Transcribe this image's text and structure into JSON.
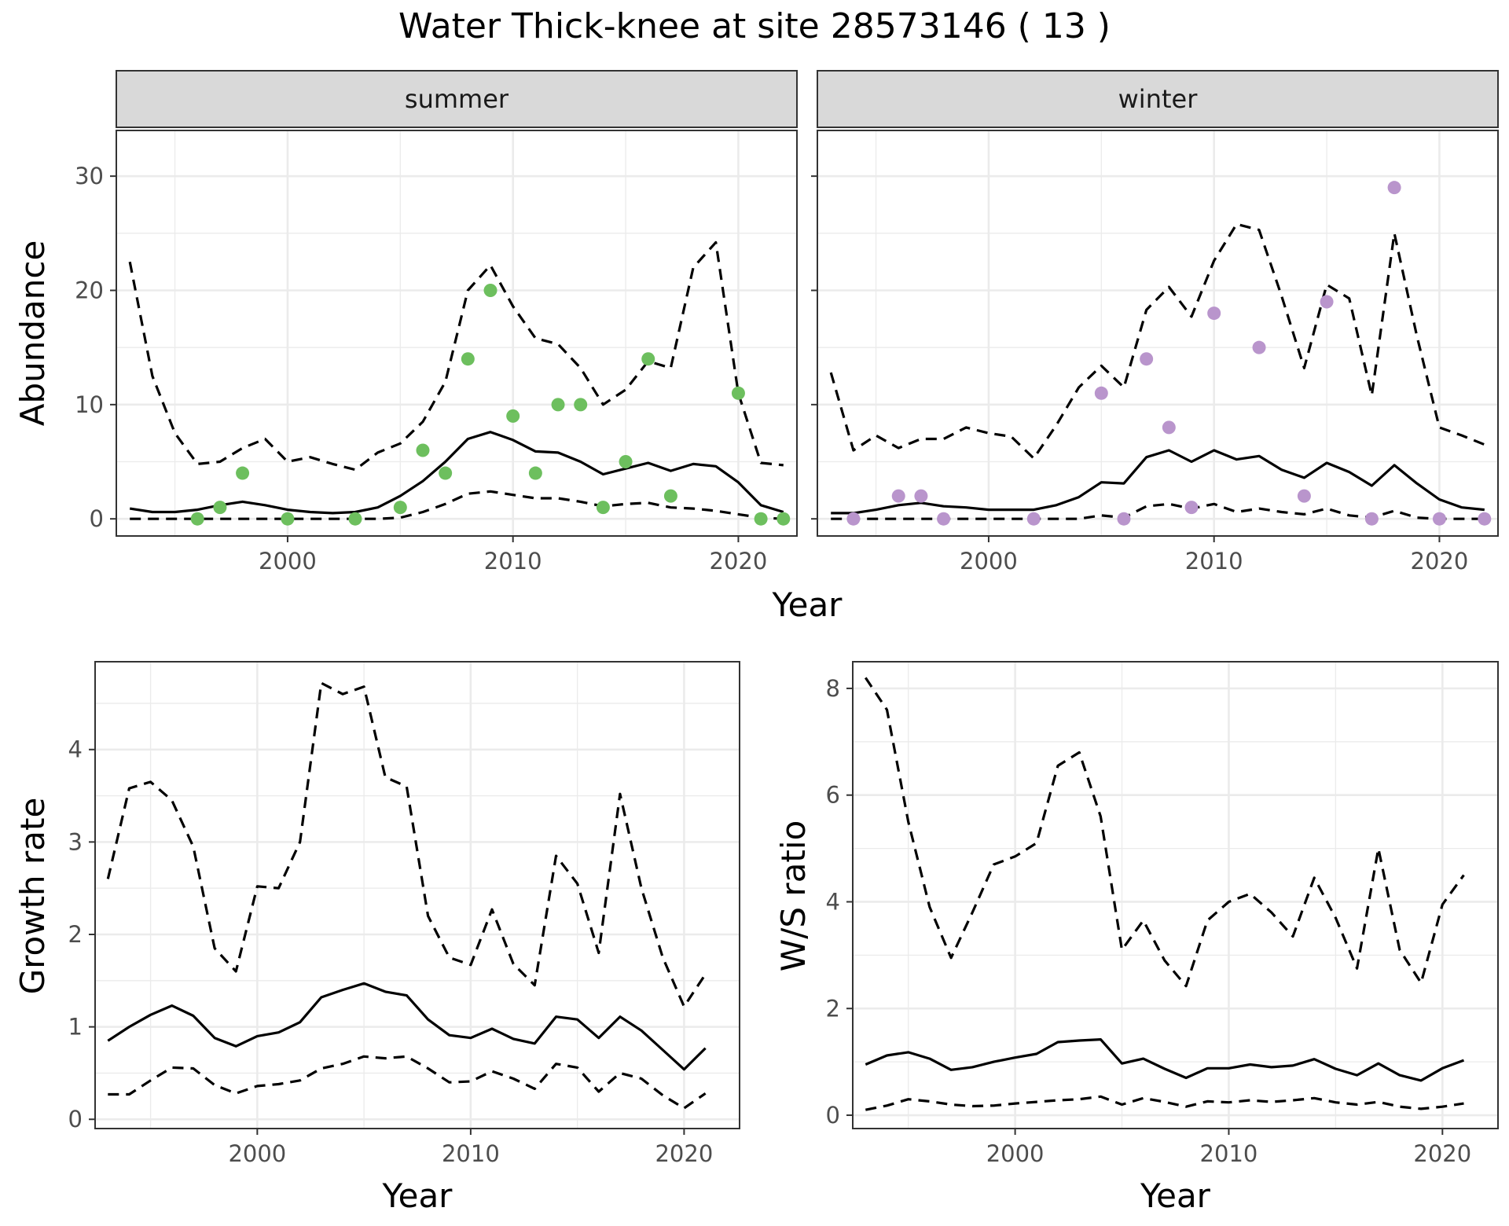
{
  "title": "Water Thick-knee at site 28573146 ( 13 )",
  "colors": {
    "summer_points": "#6dbf5e",
    "winter_points": "#b995cc"
  },
  "chart_data": [
    {
      "id": "abundance-summer",
      "type": "line",
      "facet": "summer",
      "xlabel": "Year",
      "ylabel": "Abundance",
      "xlim": [
        1992.4,
        2022.6
      ],
      "ylim": [
        -1.5,
        34
      ],
      "xticks": [
        2000,
        2010,
        2020
      ],
      "yticks": [
        0,
        10,
        20,
        30
      ],
      "tick_labels_x": [
        "2000",
        "2010",
        "2020"
      ],
      "tick_labels_y": [
        "0",
        "10",
        "20",
        "30"
      ],
      "mean": {
        "x": [
          1993,
          1994,
          1995,
          1996,
          1997,
          1998,
          1999,
          2000,
          2001,
          2002,
          2003,
          2004,
          2005,
          2006,
          2007,
          2008,
          2009,
          2010,
          2011,
          2012,
          2013,
          2014,
          2015,
          2016,
          2017,
          2018,
          2019,
          2020,
          2021,
          2022
        ],
        "y": [
          0.9,
          0.6,
          0.6,
          0.8,
          1.2,
          1.5,
          1.2,
          0.8,
          0.6,
          0.5,
          0.6,
          1.0,
          2.0,
          3.3,
          5.0,
          7.0,
          7.6,
          6.9,
          5.9,
          5.8,
          5.0,
          3.9,
          4.4,
          4.9,
          4.2,
          4.8,
          4.6,
          3.2,
          1.2,
          0.6
        ]
      },
      "upper": {
        "x": [
          1993,
          1994,
          1995,
          1996,
          1997,
          1998,
          1999,
          2000,
          2001,
          2002,
          2003,
          2004,
          2005,
          2006,
          2007,
          2008,
          2009,
          2010,
          2011,
          2012,
          2013,
          2014,
          2015,
          2016,
          2017,
          2018,
          2019,
          2020,
          2021,
          2022
        ],
        "y": [
          22.5,
          12.5,
          7.5,
          4.8,
          5.0,
          6.2,
          7.0,
          5.0,
          5.4,
          4.8,
          4.3,
          5.8,
          6.6,
          8.5,
          12.0,
          20.0,
          22.2,
          18.6,
          15.8,
          15.3,
          13.2,
          10.0,
          11.3,
          13.8,
          13.2,
          22.0,
          24.2,
          11.0,
          4.9,
          4.7
        ]
      },
      "lower": {
        "x": [
          1993,
          1994,
          1995,
          1996,
          1997,
          1998,
          1999,
          2000,
          2001,
          2002,
          2003,
          2004,
          2005,
          2006,
          2007,
          2008,
          2009,
          2010,
          2011,
          2012,
          2013,
          2014,
          2015,
          2016,
          2017,
          2018,
          2019,
          2020,
          2021,
          2022
        ],
        "y": [
          0,
          0,
          0,
          0,
          0,
          0,
          0,
          0,
          0,
          0,
          0,
          0,
          0.1,
          0.6,
          1.3,
          2.2,
          2.4,
          2.1,
          1.8,
          1.8,
          1.5,
          1.1,
          1.3,
          1.4,
          1.0,
          0.9,
          0.7,
          0.4,
          0.1,
          0.0
        ]
      },
      "points": {
        "x": [
          1996,
          1997,
          1998,
          2000,
          2003,
          2005,
          2006,
          2007,
          2008,
          2009,
          2010,
          2011,
          2012,
          2013,
          2014,
          2015,
          2016,
          2017,
          2020,
          2021,
          2022
        ],
        "y": [
          0,
          1,
          4,
          0,
          0,
          1,
          6,
          4,
          14,
          20,
          9,
          4,
          10,
          10,
          1,
          5,
          14,
          2,
          11,
          0,
          0
        ]
      }
    },
    {
      "id": "abundance-winter",
      "type": "line",
      "facet": "winter",
      "xlabel": "Year",
      "ylabel": "Abundance",
      "xlim": [
        1992.4,
        2022.6
      ],
      "ylim": [
        -1.5,
        34
      ],
      "xticks": [
        2000,
        2010,
        2020
      ],
      "yticks": [
        0,
        10,
        20,
        30
      ],
      "tick_labels_x": [
        "2000",
        "2010",
        "2020"
      ],
      "tick_labels_y": [
        "0",
        "10",
        "20",
        "30"
      ],
      "mean": {
        "x": [
          1993,
          1994,
          1995,
          1996,
          1997,
          1998,
          1999,
          2000,
          2001,
          2002,
          2003,
          2004,
          2005,
          2006,
          2007,
          2008,
          2009,
          2010,
          2011,
          2012,
          2013,
          2014,
          2015,
          2016,
          2017,
          2018,
          2019,
          2020,
          2021,
          2022
        ],
        "y": [
          0.5,
          0.5,
          0.8,
          1.2,
          1.4,
          1.1,
          1.0,
          0.8,
          0.8,
          0.8,
          1.2,
          1.9,
          3.2,
          3.1,
          5.4,
          6.0,
          5.0,
          6.0,
          5.2,
          5.5,
          4.3,
          3.6,
          4.9,
          4.1,
          2.9,
          4.7,
          3.1,
          1.7,
          1.0,
          0.8
        ]
      },
      "upper": {
        "x": [
          1993,
          1994,
          1995,
          1996,
          1997,
          1998,
          1999,
          2000,
          2001,
          2002,
          2003,
          2004,
          2005,
          2006,
          2007,
          2008,
          2009,
          2010,
          2011,
          2012,
          2013,
          2014,
          2015,
          2016,
          2017,
          2018,
          2019,
          2020,
          2021,
          2022
        ],
        "y": [
          12.8,
          6.0,
          7.3,
          6.2,
          7.0,
          7.0,
          8.0,
          7.5,
          7.2,
          5.3,
          8.2,
          11.5,
          13.4,
          11.5,
          18.3,
          20.3,
          17.7,
          22.6,
          25.8,
          25.3,
          19.5,
          13.2,
          20.5,
          19.3,
          10.8,
          25.0,
          16.0,
          8.0,
          7.3,
          6.5
        ]
      },
      "lower": {
        "x": [
          1993,
          1994,
          1995,
          1996,
          1997,
          1998,
          1999,
          2000,
          2001,
          2002,
          2003,
          2004,
          2005,
          2006,
          2007,
          2008,
          2009,
          2010,
          2011,
          2012,
          2013,
          2014,
          2015,
          2016,
          2017,
          2018,
          2019,
          2020,
          2021,
          2022
        ],
        "y": [
          0,
          0,
          0,
          0,
          0,
          0,
          0,
          0,
          0,
          0,
          0,
          0,
          0.3,
          0.1,
          1.1,
          1.3,
          0.9,
          1.3,
          0.6,
          0.9,
          0.6,
          0.4,
          0.9,
          0.3,
          0.1,
          0.7,
          0.1,
          0,
          0,
          0
        ]
      },
      "points": {
        "x": [
          1994,
          1996,
          1997,
          1998,
          2002,
          2005,
          2006,
          2007,
          2008,
          2009,
          2010,
          2012,
          2014,
          2015,
          2017,
          2018,
          2020,
          2022
        ],
        "y": [
          0,
          2,
          2,
          0,
          0,
          11,
          0,
          14,
          8,
          1,
          18,
          15,
          2,
          19,
          0,
          29,
          0,
          0
        ]
      }
    },
    {
      "id": "growth-rate",
      "type": "line",
      "xlabel": "Year",
      "ylabel": "Growth rate",
      "xlim": [
        1992.4,
        2022.6
      ],
      "ylim": [
        -0.1,
        4.95
      ],
      "xticks": [
        2000,
        2010,
        2020
      ],
      "yticks": [
        0,
        1,
        2,
        3,
        4
      ],
      "tick_labels_x": [
        "2000",
        "2010",
        "2020"
      ],
      "tick_labels_y": [
        "0",
        "1",
        "2",
        "3",
        "4"
      ],
      "mean": {
        "x": [
          1993,
          1994,
          1995,
          1996,
          1997,
          1998,
          1999,
          2000,
          2001,
          2002,
          2003,
          2004,
          2005,
          2006,
          2007,
          2008,
          2009,
          2010,
          2011,
          2012,
          2013,
          2014,
          2015,
          2016,
          2017,
          2018,
          2019,
          2020,
          2021
        ],
        "y": [
          0.85,
          1.0,
          1.13,
          1.23,
          1.12,
          0.88,
          0.79,
          0.9,
          0.94,
          1.05,
          1.32,
          1.4,
          1.47,
          1.38,
          1.34,
          1.08,
          0.91,
          0.88,
          0.98,
          0.87,
          0.82,
          1.11,
          1.08,
          0.88,
          1.11,
          0.96,
          0.75,
          0.54,
          0.77
        ]
      },
      "upper": {
        "x": [
          1993,
          1994,
          1995,
          1996,
          1997,
          1998,
          1999,
          2000,
          2001,
          2002,
          2003,
          2004,
          2005,
          2006,
          2007,
          2008,
          2009,
          2010,
          2011,
          2012,
          2013,
          2014,
          2015,
          2016,
          2017,
          2018,
          2019,
          2020,
          2021
        ],
        "y": [
          2.6,
          3.58,
          3.65,
          3.45,
          2.95,
          1.85,
          1.6,
          2.52,
          2.5,
          3.0,
          4.72,
          4.6,
          4.68,
          3.7,
          3.6,
          2.2,
          1.75,
          1.67,
          2.27,
          1.68,
          1.45,
          2.85,
          2.55,
          1.8,
          3.52,
          2.5,
          1.75,
          1.22,
          1.57
        ]
      },
      "lower": {
        "x": [
          1993,
          1994,
          1995,
          1996,
          1997,
          1998,
          1999,
          2000,
          2001,
          2002,
          2003,
          2004,
          2005,
          2006,
          2007,
          2008,
          2009,
          2010,
          2011,
          2012,
          2013,
          2014,
          2015,
          2016,
          2017,
          2018,
          2019,
          2020,
          2021
        ],
        "y": [
          0.27,
          0.27,
          0.42,
          0.56,
          0.55,
          0.37,
          0.28,
          0.36,
          0.38,
          0.42,
          0.55,
          0.6,
          0.68,
          0.66,
          0.68,
          0.55,
          0.4,
          0.41,
          0.52,
          0.44,
          0.33,
          0.6,
          0.56,
          0.3,
          0.5,
          0.44,
          0.26,
          0.12,
          0.28
        ]
      }
    },
    {
      "id": "ws-ratio",
      "type": "line",
      "xlabel": "Year",
      "ylabel": "W/S ratio",
      "xlim": [
        1992.4,
        2022.6
      ],
      "ylim": [
        -0.25,
        8.5
      ],
      "xticks": [
        2000,
        2010,
        2020
      ],
      "yticks": [
        0,
        2,
        4,
        6,
        8
      ],
      "tick_labels_x": [
        "2000",
        "2010",
        "2020"
      ],
      "tick_labels_y": [
        "0",
        "2",
        "4",
        "6",
        "8"
      ],
      "mean": {
        "x": [
          1993,
          1994,
          1995,
          1996,
          1997,
          1998,
          1999,
          2000,
          2001,
          2002,
          2003,
          2004,
          2005,
          2006,
          2007,
          2008,
          2009,
          2010,
          2011,
          2012,
          2013,
          2014,
          2015,
          2016,
          2017,
          2018,
          2019,
          2020,
          2021
        ],
        "y": [
          0.95,
          1.12,
          1.18,
          1.06,
          0.85,
          0.9,
          1.0,
          1.08,
          1.15,
          1.37,
          1.4,
          1.42,
          0.97,
          1.06,
          0.87,
          0.7,
          0.88,
          0.88,
          0.95,
          0.9,
          0.93,
          1.05,
          0.87,
          0.75,
          0.97,
          0.75,
          0.65,
          0.88,
          1.03
        ]
      },
      "upper": {
        "x": [
          1993,
          1994,
          1995,
          1996,
          1997,
          1998,
          1999,
          2000,
          2001,
          2002,
          2003,
          2004,
          2005,
          2006,
          2007,
          2008,
          2009,
          2010,
          2011,
          2012,
          2013,
          2014,
          2015,
          2016,
          2017,
          2018,
          2019,
          2020,
          2021
        ],
        "y": [
          8.2,
          7.6,
          5.5,
          3.9,
          2.95,
          3.8,
          4.7,
          4.85,
          5.1,
          6.55,
          6.8,
          5.6,
          3.1,
          3.65,
          2.9,
          2.42,
          3.65,
          4.0,
          4.15,
          3.8,
          3.35,
          4.45,
          3.7,
          2.75,
          5.0,
          3.1,
          2.48,
          3.95,
          4.5
        ]
      },
      "lower": {
        "x": [
          1993,
          1994,
          1995,
          1996,
          1997,
          1998,
          1999,
          2000,
          2001,
          2002,
          2003,
          2004,
          2005,
          2006,
          2007,
          2008,
          2009,
          2010,
          2011,
          2012,
          2013,
          2014,
          2015,
          2016,
          2017,
          2018,
          2019,
          2020,
          2021
        ],
        "y": [
          0.1,
          0.18,
          0.3,
          0.26,
          0.2,
          0.17,
          0.18,
          0.22,
          0.25,
          0.28,
          0.3,
          0.35,
          0.2,
          0.32,
          0.25,
          0.16,
          0.26,
          0.24,
          0.28,
          0.25,
          0.28,
          0.32,
          0.24,
          0.2,
          0.25,
          0.16,
          0.12,
          0.16,
          0.22
        ]
      }
    }
  ],
  "facets": {
    "summer": "summer",
    "winter": "winter"
  },
  "shared_xlabel_top": "Year"
}
